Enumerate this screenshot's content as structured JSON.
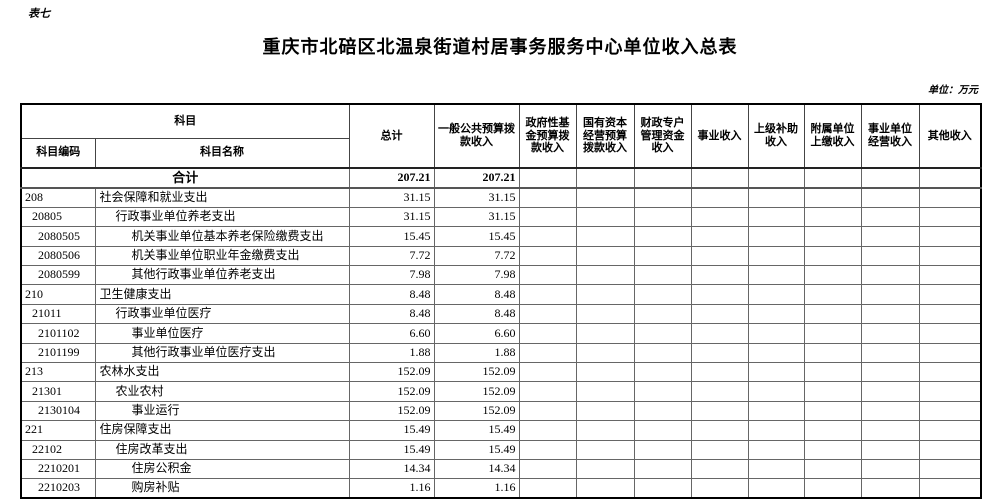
{
  "page": {
    "table_tag": "表七",
    "title": "重庆市北碚区北温泉街道村居事务服务中心单位收入总表",
    "unit_note": "单位：万元"
  },
  "colors": {
    "background": "#ffffff",
    "text": "#000000",
    "border_outer": "#000000",
    "border_inner": "#666666"
  },
  "table": {
    "header": {
      "subject": "科目",
      "subject_code": "科目编码",
      "subject_name": "科目名称",
      "value_columns": [
        "总计",
        "一般公共预算拨款收入",
        "政府性基金预算拨款收入",
        "国有资本经营预算拨款收入",
        "财政专户管理资金收入",
        "事业收入",
        "上级补助收入",
        "附属单位上缴收入",
        "事业单位经营收入",
        "其他收入"
      ]
    },
    "summary": {
      "label": "合计",
      "values": [
        "207.21",
        "207.21",
        "",
        "",
        "",
        "",
        "",
        "",
        "",
        ""
      ]
    },
    "rows": [
      {
        "code": "208",
        "name": "社会保障和就业支出",
        "level": 1,
        "values": [
          "31.15",
          "31.15",
          "",
          "",
          "",
          "",
          "",
          "",
          "",
          ""
        ]
      },
      {
        "code": "20805",
        "name": "行政事业单位养老支出",
        "level": 2,
        "values": [
          "31.15",
          "31.15",
          "",
          "",
          "",
          "",
          "",
          "",
          "",
          ""
        ]
      },
      {
        "code": "2080505",
        "name": "机关事业单位基本养老保险缴费支出",
        "level": 3,
        "values": [
          "15.45",
          "15.45",
          "",
          "",
          "",
          "",
          "",
          "",
          "",
          ""
        ]
      },
      {
        "code": "2080506",
        "name": "机关事业单位职业年金缴费支出",
        "level": 3,
        "values": [
          "7.72",
          "7.72",
          "",
          "",
          "",
          "",
          "",
          "",
          "",
          ""
        ]
      },
      {
        "code": "2080599",
        "name": "其他行政事业单位养老支出",
        "level": 3,
        "values": [
          "7.98",
          "7.98",
          "",
          "",
          "",
          "",
          "",
          "",
          "",
          ""
        ]
      },
      {
        "code": "210",
        "name": "卫生健康支出",
        "level": 1,
        "values": [
          "8.48",
          "8.48",
          "",
          "",
          "",
          "",
          "",
          "",
          "",
          ""
        ]
      },
      {
        "code": "21011",
        "name": "行政事业单位医疗",
        "level": 2,
        "values": [
          "8.48",
          "8.48",
          "",
          "",
          "",
          "",
          "",
          "",
          "",
          ""
        ]
      },
      {
        "code": "2101102",
        "name": "事业单位医疗",
        "level": 3,
        "values": [
          "6.60",
          "6.60",
          "",
          "",
          "",
          "",
          "",
          "",
          "",
          ""
        ]
      },
      {
        "code": "2101199",
        "name": "其他行政事业单位医疗支出",
        "level": 3,
        "values": [
          "1.88",
          "1.88",
          "",
          "",
          "",
          "",
          "",
          "",
          "",
          ""
        ]
      },
      {
        "code": "213",
        "name": "农林水支出",
        "level": 1,
        "values": [
          "152.09",
          "152.09",
          "",
          "",
          "",
          "",
          "",
          "",
          "",
          ""
        ]
      },
      {
        "code": "21301",
        "name": "农业农村",
        "level": 2,
        "values": [
          "152.09",
          "152.09",
          "",
          "",
          "",
          "",
          "",
          "",
          "",
          ""
        ]
      },
      {
        "code": "2130104",
        "name": "事业运行",
        "level": 3,
        "values": [
          "152.09",
          "152.09",
          "",
          "",
          "",
          "",
          "",
          "",
          "",
          ""
        ]
      },
      {
        "code": "221",
        "name": "住房保障支出",
        "level": 1,
        "values": [
          "15.49",
          "15.49",
          "",
          "",
          "",
          "",
          "",
          "",
          "",
          ""
        ]
      },
      {
        "code": "22102",
        "name": "住房改革支出",
        "level": 2,
        "values": [
          "15.49",
          "15.49",
          "",
          "",
          "",
          "",
          "",
          "",
          "",
          ""
        ]
      },
      {
        "code": "2210201",
        "name": "住房公积金",
        "level": 3,
        "values": [
          "14.34",
          "14.34",
          "",
          "",
          "",
          "",
          "",
          "",
          "",
          ""
        ]
      },
      {
        "code": "2210203",
        "name": "购房补贴",
        "level": 3,
        "values": [
          "1.16",
          "1.16",
          "",
          "",
          "",
          "",
          "",
          "",
          "",
          ""
        ]
      }
    ]
  }
}
